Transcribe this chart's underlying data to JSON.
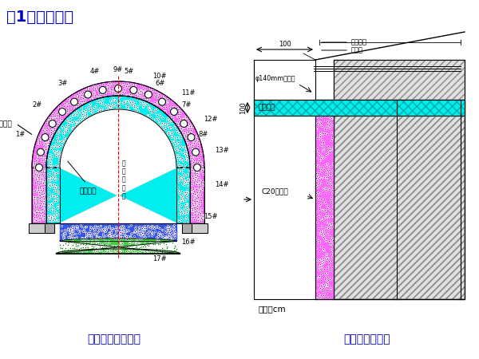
{
  "title": "（1）洞口施工",
  "title_color": "#0000CC",
  "title_fontsize": 14,
  "bg_color": "#FFFFFF",
  "left_caption": "洞口横断面示意图",
  "right_caption": "洞口侧面示意图",
  "caption_color": "#0000BB",
  "caption_fontsize": 10,
  "unit_text": "单位：cm",
  "outer_pink": "#FF44FF",
  "inner_cyan": "#00DDDD",
  "floor_blue": "#3366FF",
  "floor_green": "#44CC44"
}
